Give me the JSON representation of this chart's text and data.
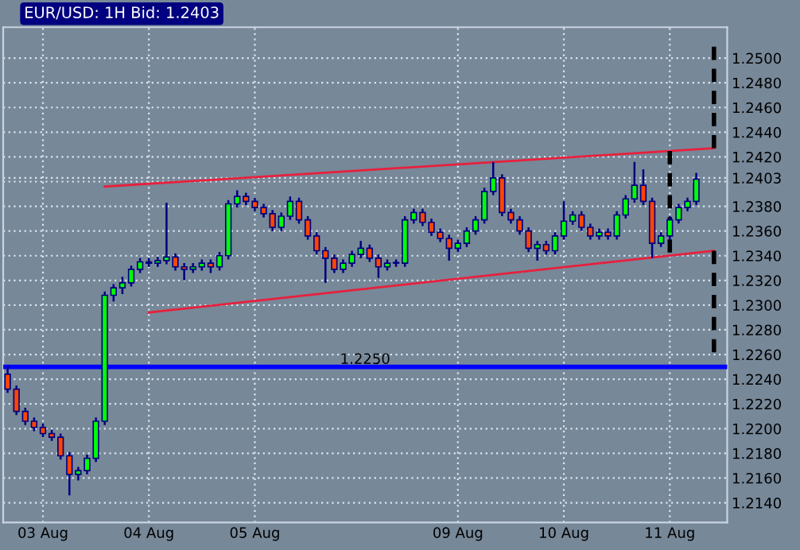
{
  "chart_data": {
    "type": "candlestick",
    "title": "EUR/USD: 1H Bid: 1.2403",
    "categories": [
      null,
      null,
      null,
      null,
      "03 Aug",
      null,
      null,
      null,
      null,
      null,
      null,
      null,
      null,
      null,
      null,
      null,
      "04 Aug",
      null,
      null,
      null,
      null,
      null,
      null,
      null,
      null,
      null,
      null,
      null,
      "05 Aug",
      null,
      null,
      null,
      null,
      null,
      null,
      null,
      null,
      null,
      null,
      null,
      null,
      null,
      null,
      null,
      null,
      null,
      null,
      null,
      null,
      null,
      null,
      "09 Aug",
      null,
      null,
      null,
      null,
      null,
      null,
      null,
      null,
      null,
      null,
      null,
      "10 Aug",
      null,
      null,
      null,
      null,
      null,
      null,
      null,
      null,
      null,
      null,
      null,
      "11 Aug",
      null,
      null,
      null,
      null,
      null,
      null
    ],
    "ohlc": [
      [
        1.2244,
        1.2251,
        1.2229,
        1.2232
      ],
      [
        1.2232,
        1.2235,
        1.2211,
        1.2214
      ],
      [
        1.2214,
        1.2217,
        1.2203,
        1.2206
      ],
      [
        1.2206,
        1.2209,
        1.2198,
        1.2201
      ],
      [
        1.2201,
        1.2204,
        1.2193,
        1.2196
      ],
      [
        1.2196,
        1.2199,
        1.219,
        1.2193
      ],
      [
        1.2193,
        1.2196,
        1.2175,
        1.2178
      ],
      [
        1.2178,
        1.2181,
        1.2146,
        1.2163
      ],
      [
        1.2163,
        1.2169,
        1.2158,
        1.2166
      ],
      [
        1.2166,
        1.2179,
        1.2163,
        1.2176
      ],
      [
        1.2176,
        1.2209,
        1.2173,
        1.2206
      ],
      [
        1.2206,
        1.2311,
        1.2203,
        1.2308
      ],
      [
        1.2308,
        1.2317,
        1.2303,
        1.2314
      ],
      [
        1.2314,
        1.2323,
        1.2309,
        1.2318
      ],
      [
        1.2318,
        1.2332,
        1.2315,
        1.2329
      ],
      [
        1.2329,
        1.2338,
        1.2326,
        1.2335
      ],
      [
        1.2335,
        1.2338,
        1.2331,
        1.2334
      ],
      [
        1.2334,
        1.2339,
        1.2331,
        1.2336
      ],
      [
        1.2336,
        1.2383,
        1.2333,
        1.2339
      ],
      [
        1.2339,
        1.2342,
        1.2328,
        1.2331
      ],
      [
        1.2331,
        1.2334,
        1.232,
        1.2329
      ],
      [
        1.2329,
        1.2334,
        1.2326,
        1.2331
      ],
      [
        1.2331,
        1.2337,
        1.2328,
        1.2334
      ],
      [
        1.2334,
        1.2337,
        1.2326,
        1.2331
      ],
      [
        1.2331,
        1.2343,
        1.2328,
        1.234
      ],
      [
        1.234,
        1.2385,
        1.2337,
        1.2382
      ],
      [
        1.2382,
        1.2393,
        1.2379,
        1.2388
      ],
      [
        1.2388,
        1.2391,
        1.2381,
        1.2384
      ],
      [
        1.2384,
        1.2387,
        1.2376,
        1.2379
      ],
      [
        1.2379,
        1.2382,
        1.2371,
        1.2374
      ],
      [
        1.2374,
        1.2377,
        1.236,
        1.2363
      ],
      [
        1.2363,
        1.2375,
        1.236,
        1.2372
      ],
      [
        1.2372,
        1.2388,
        1.2369,
        1.2384
      ],
      [
        1.2384,
        1.2387,
        1.2366,
        1.2369
      ],
      [
        1.2369,
        1.2372,
        1.2353,
        1.2356
      ],
      [
        1.2356,
        1.2359,
        1.2341,
        1.2344
      ],
      [
        1.2344,
        1.2347,
        1.2318,
        1.2338
      ],
      [
        1.2338,
        1.2341,
        1.2326,
        1.2329
      ],
      [
        1.2329,
        1.2337,
        1.2326,
        1.2334
      ],
      [
        1.2334,
        1.2344,
        1.2331,
        1.2341
      ],
      [
        1.2341,
        1.2352,
        1.2338,
        1.2346
      ],
      [
        1.2346,
        1.2349,
        1.2335,
        1.2338
      ],
      [
        1.2338,
        1.2341,
        1.2322,
        1.2331
      ],
      [
        1.2331,
        1.2337,
        1.2328,
        1.2334
      ],
      [
        1.2334,
        1.2337,
        1.2331,
        1.2334
      ],
      [
        1.2334,
        1.2372,
        1.2331,
        1.2369
      ],
      [
        1.2369,
        1.2378,
        1.2366,
        1.2375
      ],
      [
        1.2375,
        1.2378,
        1.2364,
        1.2367
      ],
      [
        1.2367,
        1.237,
        1.2356,
        1.2359
      ],
      [
        1.2359,
        1.2362,
        1.2351,
        1.2354
      ],
      [
        1.2354,
        1.2357,
        1.2336,
        1.2346
      ],
      [
        1.2346,
        1.2353,
        1.2343,
        1.235
      ],
      [
        1.235,
        1.2363,
        1.2347,
        1.236
      ],
      [
        1.236,
        1.2372,
        1.2357,
        1.2369
      ],
      [
        1.2369,
        1.2395,
        1.2366,
        1.2392
      ],
      [
        1.2392,
        1.2416,
        1.2389,
        1.2403
      ],
      [
        1.2403,
        1.2406,
        1.2372,
        1.2375
      ],
      [
        1.2375,
        1.2378,
        1.2366,
        1.2369
      ],
      [
        1.2369,
        1.2372,
        1.2357,
        1.236
      ],
      [
        1.236,
        1.2363,
        1.2343,
        1.2346
      ],
      [
        1.2346,
        1.2352,
        1.2336,
        1.2349
      ],
      [
        1.2349,
        1.2352,
        1.2341,
        1.2344
      ],
      [
        1.2344,
        1.2359,
        1.2341,
        1.2356
      ],
      [
        1.2356,
        1.2384,
        1.2353,
        1.2368
      ],
      [
        1.2368,
        1.2376,
        1.2365,
        1.2373
      ],
      [
        1.2373,
        1.2376,
        1.236,
        1.2363
      ],
      [
        1.2363,
        1.2366,
        1.2353,
        1.2356
      ],
      [
        1.2356,
        1.2362,
        1.2353,
        1.2359
      ],
      [
        1.2359,
        1.2362,
        1.2353,
        1.2356
      ],
      [
        1.2356,
        1.2376,
        1.2353,
        1.2373
      ],
      [
        1.2373,
        1.2389,
        1.237,
        1.2386
      ],
      [
        1.2386,
        1.2416,
        1.2383,
        1.2397
      ],
      [
        1.2397,
        1.241,
        1.2381,
        1.2384
      ],
      [
        1.2384,
        1.2387,
        1.2338,
        1.235
      ],
      [
        1.235,
        1.2359,
        1.2347,
        1.2356
      ],
      [
        1.2356,
        1.2372,
        1.2353,
        1.2369
      ],
      [
        1.2369,
        1.2382,
        1.2366,
        1.2379
      ],
      [
        1.2379,
        1.2387,
        1.2376,
        1.2384
      ],
      [
        1.2384,
        1.2407,
        1.2381,
        1.2402
      ],
      null,
      null,
      null
    ],
    "series": [
      {
        "type": "line",
        "color": "#e8203c",
        "values": [
          null,
          null,
          null,
          null,
          null,
          null,
          null,
          null,
          null,
          null,
          null,
          1.2396,
          null,
          null,
          null,
          null,
          null,
          null,
          null,
          null,
          null,
          null,
          null,
          null,
          null,
          null,
          null,
          null,
          null,
          null,
          null,
          null,
          null,
          null,
          null,
          null,
          null,
          null,
          null,
          null,
          null,
          null,
          null,
          null,
          null,
          null,
          null,
          null,
          null,
          null,
          null,
          null,
          null,
          null,
          null,
          null,
          null,
          null,
          null,
          null,
          null,
          null,
          null,
          null,
          null,
          null,
          null,
          null,
          null,
          null,
          null,
          null,
          null,
          null,
          null,
          null,
          null,
          null,
          null,
          null,
          1.2427,
          null
        ]
      },
      {
        "type": "line",
        "color": "#e8203c",
        "values": [
          null,
          null,
          null,
          null,
          null,
          null,
          null,
          null,
          null,
          null,
          null,
          null,
          null,
          null,
          null,
          null,
          1.2294,
          null,
          null,
          null,
          null,
          null,
          null,
          null,
          null,
          null,
          null,
          null,
          null,
          null,
          null,
          null,
          null,
          null,
          null,
          null,
          null,
          null,
          null,
          null,
          null,
          null,
          null,
          null,
          null,
          null,
          null,
          null,
          null,
          null,
          null,
          null,
          null,
          null,
          null,
          null,
          null,
          null,
          null,
          null,
          null,
          null,
          null,
          null,
          null,
          null,
          null,
          null,
          null,
          null,
          null,
          null,
          null,
          null,
          null,
          null,
          null,
          null,
          null,
          null,
          1.2344,
          null
        ]
      }
    ],
    "ref_lines": [
      {
        "axis": "y",
        "value": 1.225,
        "label": "1.2250",
        "color": "#0000ff"
      }
    ],
    "ylim": [
      1.2124,
      1.2525
    ],
    "yticks": [
      {
        "value": 1.214,
        "label": "1.2140"
      },
      {
        "value": 1.216,
        "label": "1.2160"
      },
      {
        "value": 1.218,
        "label": "1.2180"
      },
      {
        "value": 1.22,
        "label": "1.2200"
      },
      {
        "value": 1.222,
        "label": "1.2220"
      },
      {
        "value": 1.224,
        "label": "1.2240"
      },
      {
        "value": 1.226,
        "label": "1.2260"
      },
      {
        "value": 1.228,
        "label": "1.2280"
      },
      {
        "value": 1.23,
        "label": "1.2300"
      },
      {
        "value": 1.232,
        "label": "1.2320"
      },
      {
        "value": 1.234,
        "label": "1.2340"
      },
      {
        "value": 1.236,
        "label": "1.2360"
      },
      {
        "value": 1.238,
        "label": "1.2380"
      },
      {
        "value": 1.24,
        "label": null
      },
      {
        "value": 1.2403,
        "label": "1.2403"
      },
      {
        "value": 1.242,
        "label": "1.2420"
      },
      {
        "value": 1.244,
        "label": "1.2440"
      },
      {
        "value": 1.246,
        "label": "1.2460"
      },
      {
        "value": 1.248,
        "label": "1.2480"
      },
      {
        "value": 1.25,
        "label": "1.2500"
      }
    ],
    "grid": true,
    "marker": "none"
  }
}
